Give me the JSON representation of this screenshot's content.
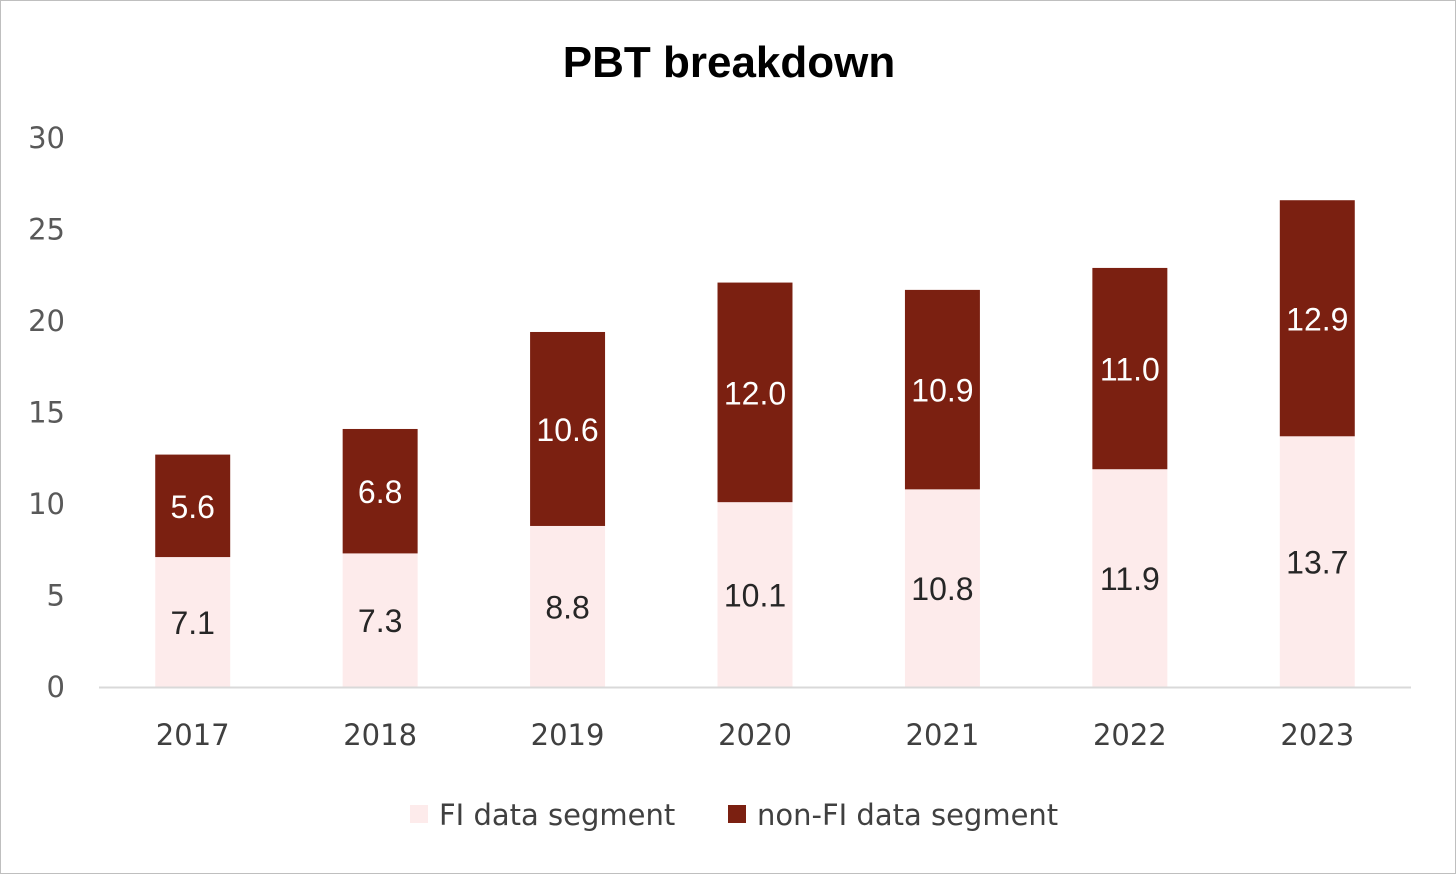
{
  "chart_data": {
    "type": "bar",
    "stacked": true,
    "title": "PBT breakdown",
    "categories": [
      "2017",
      "2018",
      "2019",
      "2020",
      "2021",
      "2022",
      "2023"
    ],
    "series": [
      {
        "name": "FI data segment",
        "values": [
          7.1,
          7.3,
          8.8,
          10.1,
          10.8,
          11.9,
          13.7
        ],
        "color": "#fdebeb",
        "label_color": "#262626"
      },
      {
        "name": "non-FI data segment",
        "values": [
          5.6,
          6.8,
          10.6,
          12.0,
          10.9,
          11.0,
          12.9
        ],
        "color": "#7b2011",
        "label_color": "#ffffff"
      }
    ],
    "data_labels": [
      [
        "7.1",
        "7.3",
        "8.8",
        "10.1",
        "10.8",
        "11.9",
        "13.7"
      ],
      [
        "5.6",
        "6.8",
        "10.6",
        "12.0",
        "10.9",
        "11.0",
        "12.9"
      ]
    ],
    "yticks": [
      "0",
      "5",
      "10",
      "15",
      "20",
      "25",
      "30"
    ],
    "ylim": [
      0,
      30
    ],
    "grid": false,
    "legend": "bottom",
    "axis_color": "#d9d9d9"
  }
}
